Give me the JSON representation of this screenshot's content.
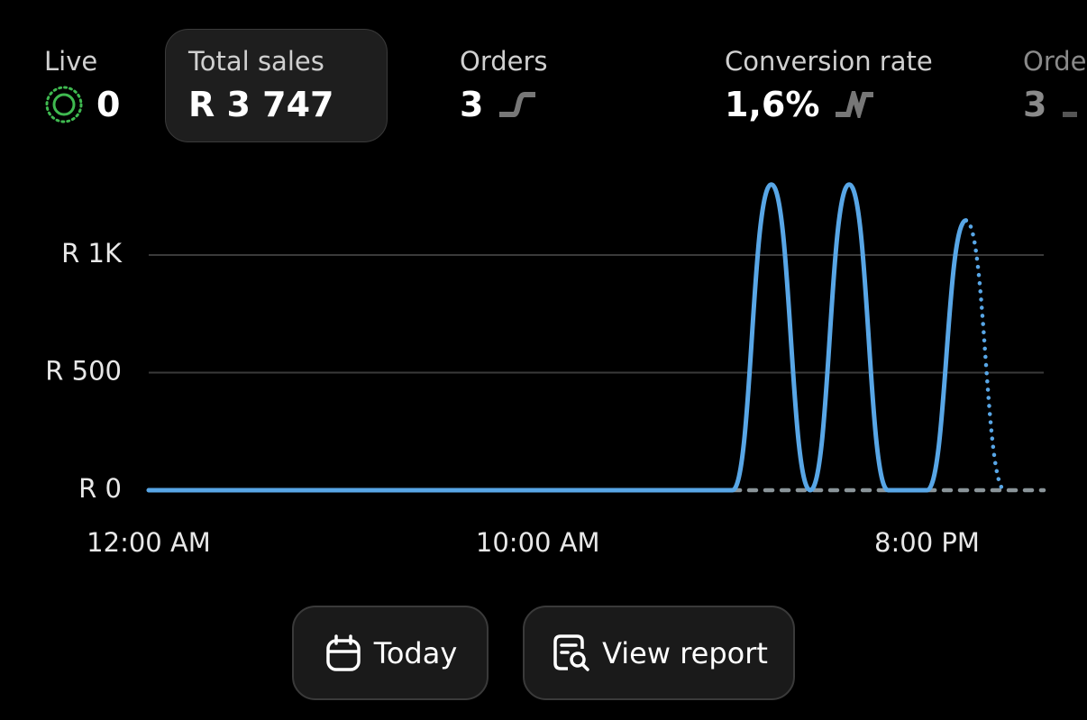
{
  "metrics": [
    {
      "label": "Live",
      "value": "0"
    },
    {
      "label": "Total sales",
      "value": "R 3 747"
    },
    {
      "label": "Orders",
      "value": "3"
    },
    {
      "label": "Conversion rate",
      "value": "1,6%"
    },
    {
      "label": "Orders",
      "value": "3"
    }
  ],
  "chart_data": {
    "type": "line",
    "x": [
      0,
      1,
      2,
      3,
      4,
      5,
      6,
      7,
      8,
      9,
      10,
      11,
      12,
      13,
      14,
      15,
      16,
      17,
      18,
      19,
      20,
      21,
      22,
      23
    ],
    "xlim": [
      0,
      23
    ],
    "xticks": [
      {
        "value": 0,
        "label": "12:00 AM"
      },
      {
        "value": 10,
        "label": "10:00 AM"
      },
      {
        "value": 20,
        "label": "8:00 PM"
      }
    ],
    "ylim": [
      0,
      1300
    ],
    "yticks": [
      {
        "value": 0,
        "label": "R 0"
      },
      {
        "value": 500,
        "label": "R 500"
      },
      {
        "value": 1000,
        "label": "R 1K"
      }
    ],
    "grid": true,
    "series": [
      {
        "color": "#8a9499",
        "style": "dashed",
        "values": [
          0,
          0,
          0,
          0,
          0,
          0,
          0,
          0,
          0,
          0,
          0,
          0,
          0,
          0,
          0,
          0,
          0,
          0,
          0,
          0,
          0,
          0,
          0,
          0
        ]
      },
      {
        "color": "#58a6e6",
        "style": "solid",
        "values": [
          0,
          0,
          0,
          0,
          0,
          0,
          0,
          0,
          0,
          0,
          0,
          0,
          0,
          0,
          0,
          0,
          1300,
          0,
          1300,
          0,
          0,
          1147,
          null,
          null
        ]
      },
      {
        "color": "#58a6e6",
        "style": "dotted",
        "values": [
          null,
          null,
          null,
          null,
          null,
          null,
          null,
          null,
          null,
          null,
          null,
          null,
          null,
          null,
          null,
          null,
          null,
          null,
          null,
          null,
          null,
          1147,
          0,
          null
        ]
      }
    ]
  },
  "buttons": {
    "today": "Today",
    "view_report": "View report"
  }
}
